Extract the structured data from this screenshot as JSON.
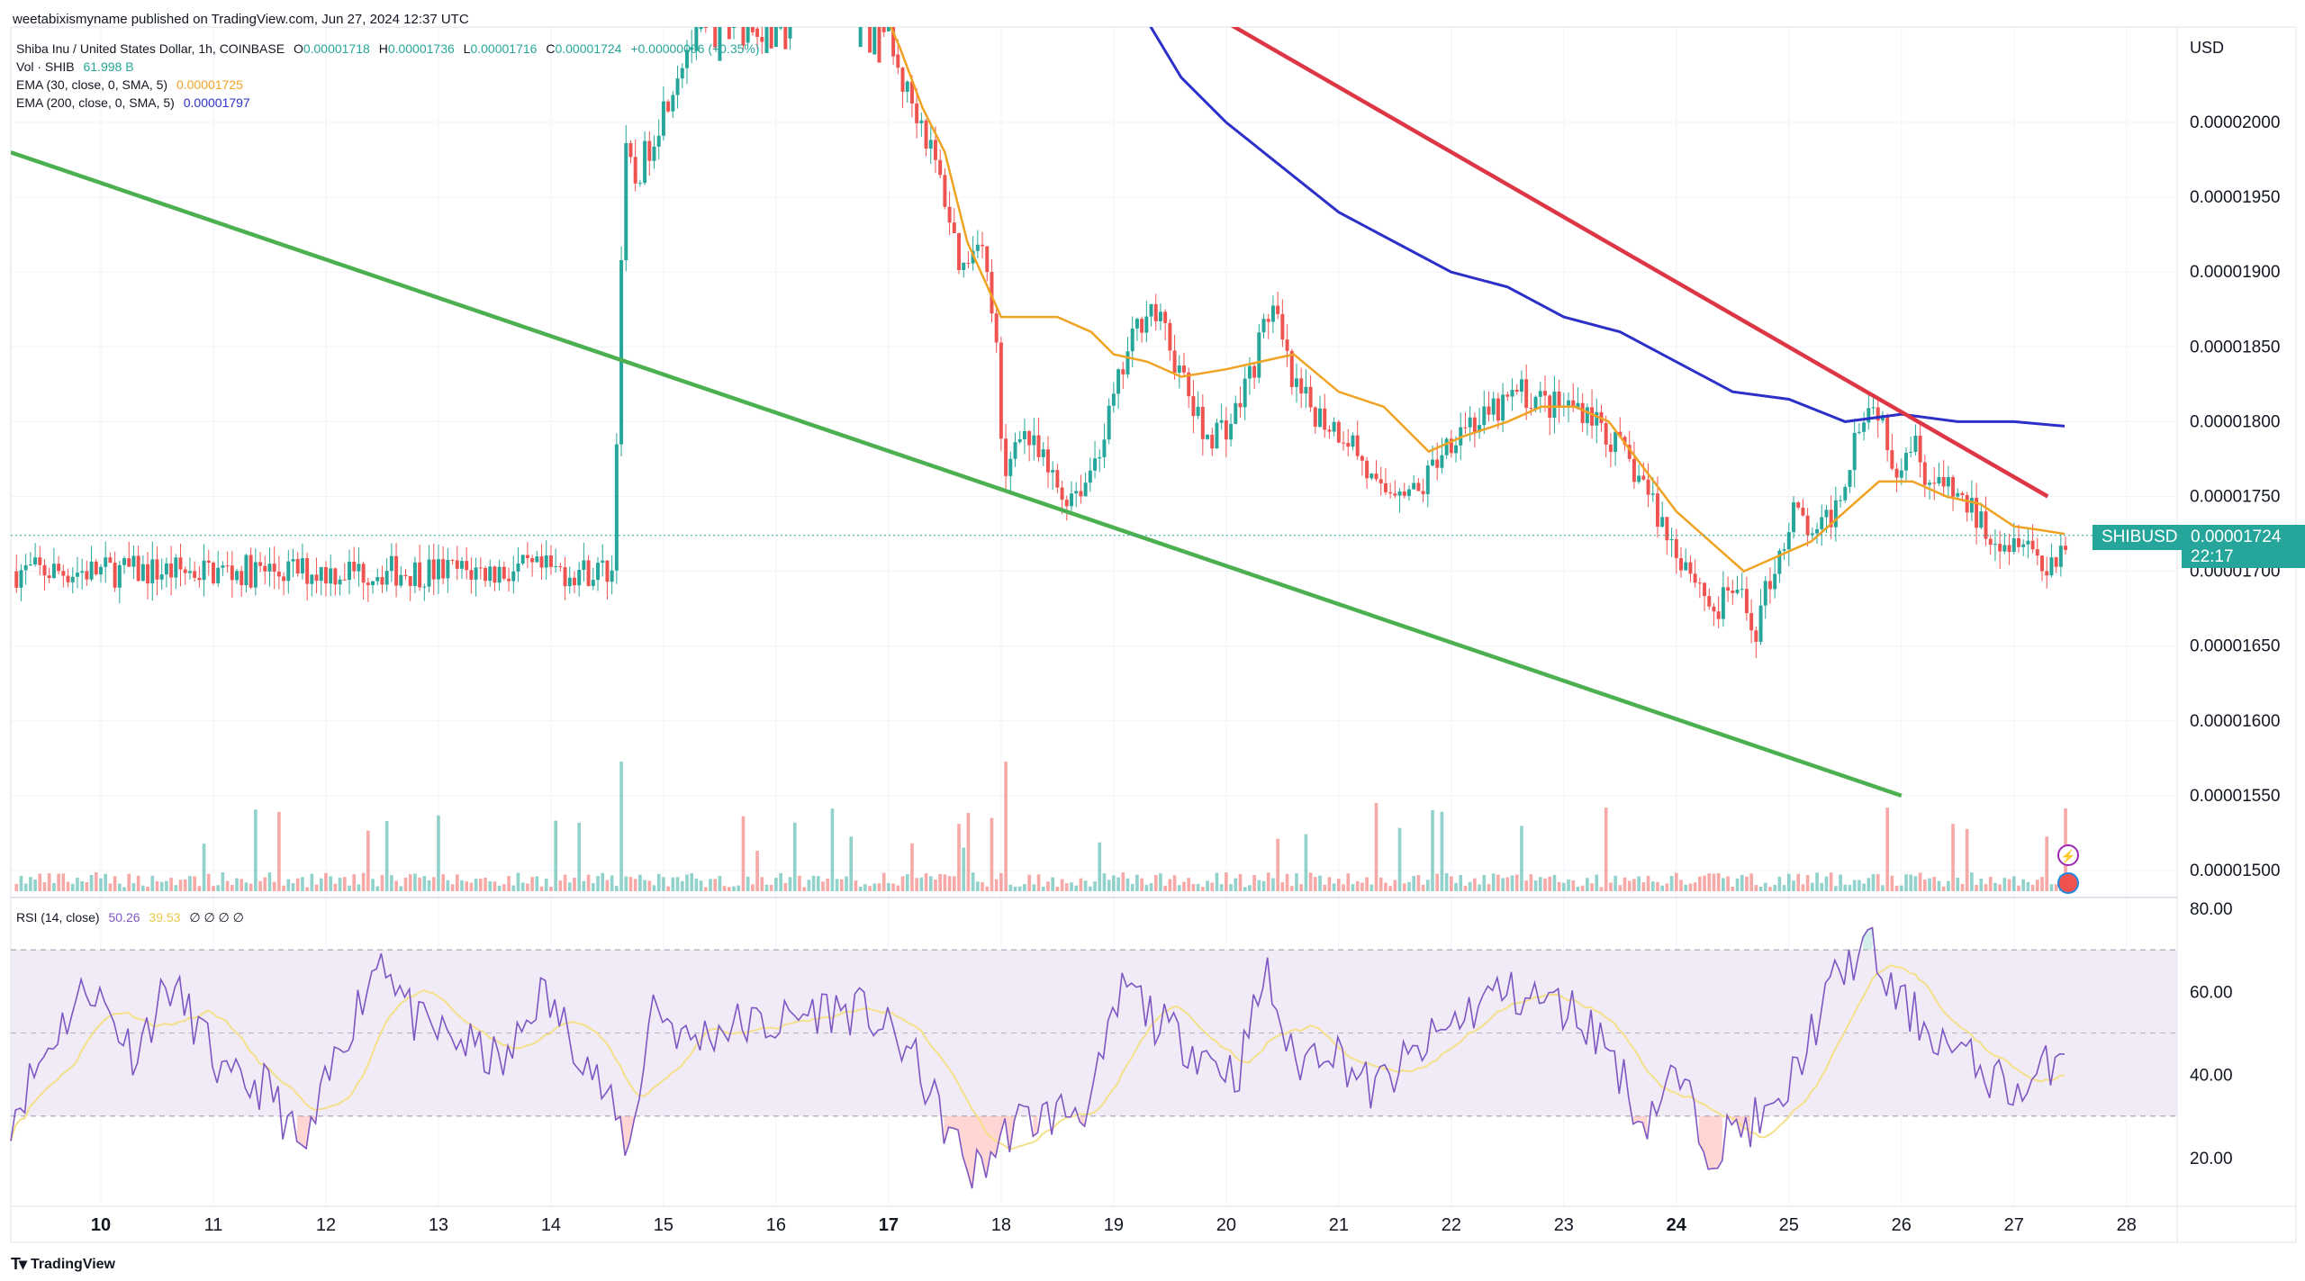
{
  "header": {
    "text": "weetabixismyname published on TradingView.com, Jun 27, 2024 12:37 UTC"
  },
  "legend": {
    "symbol_line": "Shiba Inu / United States Dollar, 1h, COINBASE",
    "ohlc": {
      "o_label": "O",
      "o": "0.00001718",
      "h_label": "H",
      "h": "0.00001736",
      "l_label": "L",
      "l": "0.00001716",
      "c_label": "C",
      "c": "0.00001724",
      "change": "+0.00000006 (+0.35%)"
    },
    "vol_label": "Vol · SHIB",
    "vol_value": "61.998 B",
    "ema30_label": "EMA (30, close, 0, SMA, 5)",
    "ema30_value": "0.00001725",
    "ema200_label": "EMA (200, close, 0, SMA, 5)",
    "ema200_value": "0.00001797",
    "rsi_label": "RSI (14, close)",
    "rsi_value": "50.26",
    "rsi_ma_value": "39.53",
    "rsi_extra": "∅ ∅ ∅ ∅"
  },
  "currency": "USD",
  "symbol_badge": "SHIBUSD",
  "price_badge": {
    "price": "0.00001724",
    "countdown": "22:17"
  },
  "price_axis": {
    "labels": [
      "0.00002000",
      "0.00001950",
      "0.00001900",
      "0.00001850",
      "0.00001800",
      "0.00001750",
      "0.00001700",
      "0.00001650",
      "0.00001600",
      "0.00001550",
      "0.00001500"
    ]
  },
  "rsi_axis": {
    "labels": [
      "80.00",
      "60.00",
      "40.00",
      "20.00"
    ]
  },
  "time_axis": {
    "labels": [
      "10",
      "11",
      "12",
      "13",
      "14",
      "15",
      "16",
      "17",
      "18",
      "19",
      "20",
      "21",
      "22",
      "23",
      "24",
      "25",
      "26",
      "27",
      "28"
    ],
    "bold": [
      "10",
      "17",
      "24"
    ]
  },
  "branding": {
    "logo_text": "TradingView"
  },
  "colors": {
    "up": "#26a69a",
    "down": "#ef5350",
    "ema30": "#f0a223",
    "ema200": "#2d2fc9",
    "trend_red": "#dd3645",
    "trend_green": "#4caf50",
    "rsi_line": "#7e57c2",
    "rsi_ma": "#f5e08a",
    "rsi_band": "#ede7f6"
  },
  "chart_data": {
    "type": "candlestick",
    "symbol": "SHIBUSD",
    "interval": "1h",
    "x_range_days": [
      9.2,
      28.45
    ],
    "y_range": [
      1.48e-05,
      2.06e-05
    ],
    "ema30_points": [
      [
        16.95,
        2.076e-05
      ],
      [
        17.1,
        2.05e-05
      ],
      [
        17.3,
        2.01e-05
      ],
      [
        17.5,
        1.98e-05
      ],
      [
        17.7,
        1.92e-05
      ],
      [
        18.0,
        1.87e-05
      ],
      [
        18.3,
        1.87e-05
      ],
      [
        18.5,
        1.87e-05
      ],
      [
        18.8,
        1.86e-05
      ],
      [
        19.0,
        1.845e-05
      ],
      [
        19.3,
        1.84e-05
      ],
      [
        19.6,
        1.83e-05
      ],
      [
        20.0,
        1.835e-05
      ],
      [
        20.3,
        1.84e-05
      ],
      [
        20.6,
        1.845e-05
      ],
      [
        21.0,
        1.82e-05
      ],
      [
        21.4,
        1.81e-05
      ],
      [
        21.8,
        1.78e-05
      ],
      [
        22.1,
        1.79e-05
      ],
      [
        22.5,
        1.8e-05
      ],
      [
        22.8,
        1.81e-05
      ],
      [
        23.1,
        1.81e-05
      ],
      [
        23.4,
        1.8e-05
      ],
      [
        23.7,
        1.77e-05
      ],
      [
        24.0,
        1.74e-05
      ],
      [
        24.3,
        1.72e-05
      ],
      [
        24.6,
        1.7e-05
      ],
      [
        24.9,
        1.71e-05
      ],
      [
        25.2,
        1.72e-05
      ],
      [
        25.5,
        1.74e-05
      ],
      [
        25.8,
        1.76e-05
      ],
      [
        26.1,
        1.76e-05
      ],
      [
        26.4,
        1.75e-05
      ],
      [
        26.7,
        1.745e-05
      ],
      [
        27.0,
        1.73e-05
      ],
      [
        27.2,
        1.728e-05
      ],
      [
        27.45,
        1.725e-05
      ]
    ],
    "ema200_points": [
      [
        19.2,
        2.08e-05
      ],
      [
        19.6,
        2.03e-05
      ],
      [
        20.0,
        2e-05
      ],
      [
        20.5,
        1.97e-05
      ],
      [
        21.0,
        1.94e-05
      ],
      [
        21.5,
        1.92e-05
      ],
      [
        22.0,
        1.9e-05
      ],
      [
        22.5,
        1.89e-05
      ],
      [
        23.0,
        1.87e-05
      ],
      [
        23.5,
        1.86e-05
      ],
      [
        24.0,
        1.84e-05
      ],
      [
        24.5,
        1.82e-05
      ],
      [
        25.0,
        1.815e-05
      ],
      [
        25.5,
        1.8e-05
      ],
      [
        26.0,
        1.805e-05
      ],
      [
        26.5,
        1.8e-05
      ],
      [
        27.0,
        1.8e-05
      ],
      [
        27.45,
        1.797e-05
      ]
    ],
    "trendlines": [
      {
        "color": "red",
        "points": [
          [
            19.7,
            2.08e-05
          ],
          [
            27.3,
            1.75e-05
          ]
        ]
      },
      {
        "color": "green",
        "points": [
          [
            9.2,
            1.98e-05
          ],
          [
            26.0,
            1.55e-05
          ]
        ]
      }
    ],
    "last_price": 1.724e-05,
    "rsi": {
      "range": [
        10,
        85
      ],
      "overbought": 70,
      "middle": 50,
      "oversold": 30,
      "last": 50.26,
      "ma_last": 39.53
    }
  }
}
